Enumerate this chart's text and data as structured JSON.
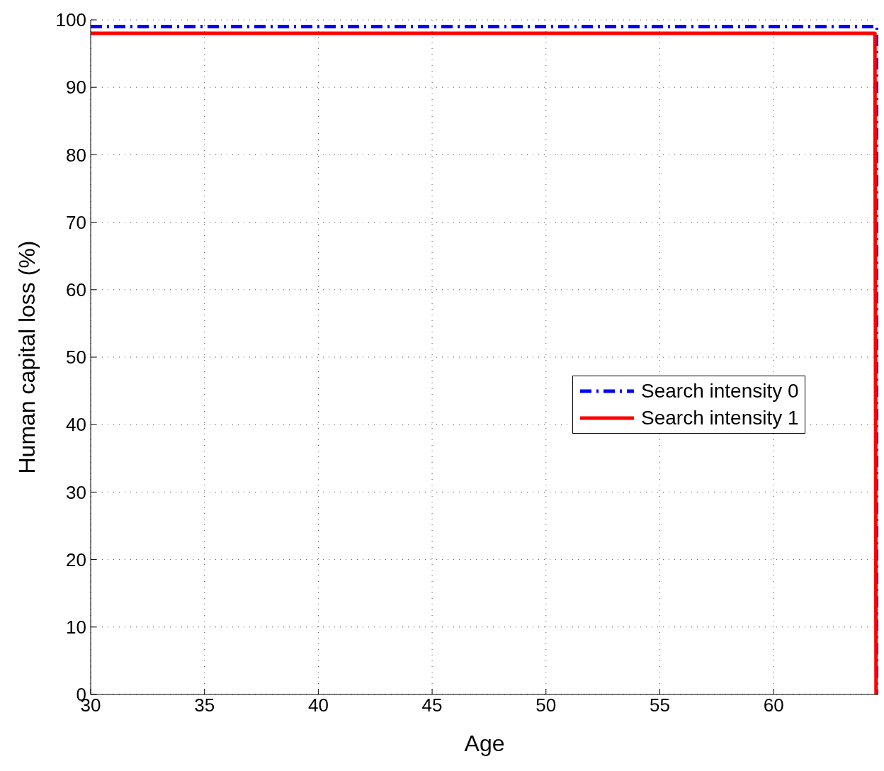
{
  "chart_data": {
    "type": "line",
    "xlabel": "Age",
    "ylabel": "Human capital loss (%)",
    "xlim": [
      30,
      64.6
    ],
    "xticks": [
      30,
      35,
      40,
      45,
      50,
      55,
      60
    ],
    "ylim": [
      0,
      100
    ],
    "yticks": [
      0,
      10,
      20,
      30,
      40,
      50,
      60,
      70,
      80,
      90,
      100
    ],
    "grid": true,
    "legend": "right",
    "marker": "none",
    "series": [
      {
        "name": "Search intensity 0",
        "color": "#0000ff",
        "line_style": "dashed",
        "x": [
          30,
          64.55,
          64.6
        ],
        "values": [
          99,
          99,
          0
        ]
      },
      {
        "name": "Search intensity 1",
        "color": "#ff0000",
        "line_style": "solid",
        "x": [
          30,
          64.45,
          64.5
        ],
        "values": [
          98,
          98,
          0
        ]
      }
    ]
  }
}
